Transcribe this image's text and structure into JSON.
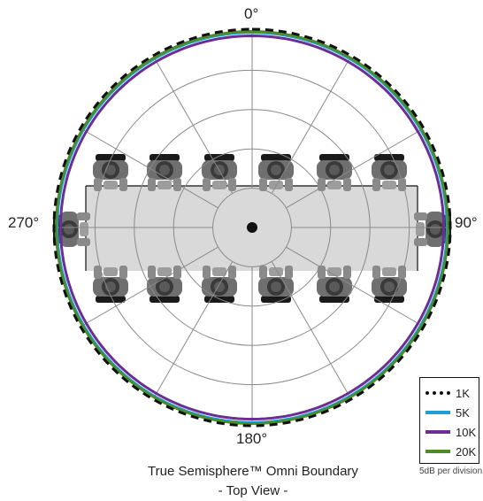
{
  "chart_data": {
    "type": "polar",
    "angle_labels": [
      "0°",
      "90°",
      "180°",
      "270°"
    ],
    "angle_tick_step_deg": 30,
    "radial_divisions": 5,
    "radial_unit": "5dB per division",
    "series": [
      {
        "name": "1K",
        "color": "#111111",
        "style": "dashed",
        "theta": [
          0,
          90,
          180,
          270,
          360
        ],
        "r_db": [
          0,
          0,
          0,
          0,
          0
        ]
      },
      {
        "name": "5K",
        "color": "#1a9fd6",
        "style": "solid",
        "theta": [
          0,
          90,
          180,
          270,
          360
        ],
        "r_db": [
          -0.3,
          -0.3,
          -0.3,
          -0.3,
          -0.3
        ]
      },
      {
        "name": "10K",
        "color": "#6a2e94",
        "style": "solid",
        "theta": [
          0,
          90,
          180,
          270,
          360
        ],
        "r_db": [
          -0.6,
          -0.6,
          -0.6,
          -0.6,
          -0.6
        ]
      },
      {
        "name": "20K",
        "color": "#4c8c2b",
        "style": "solid",
        "theta": [
          0,
          90,
          180,
          270,
          360
        ],
        "r_db": [
          -0.2,
          -0.2,
          -0.2,
          -0.2,
          -0.2
        ]
      }
    ]
  },
  "caption": {
    "line1": "True Semisphere™ Omni Boundary",
    "line2": "- Top View -"
  },
  "legend": {
    "items": [
      {
        "label": "1K",
        "color": "#111111",
        "style": "dotted"
      },
      {
        "label": "5K",
        "color": "#1a9fd6",
        "style": "solid"
      },
      {
        "label": "10K",
        "color": "#6a2e94",
        "style": "solid"
      },
      {
        "label": "20K",
        "color": "#4c8c2b",
        "style": "solid"
      }
    ],
    "note": "5dB per division"
  }
}
